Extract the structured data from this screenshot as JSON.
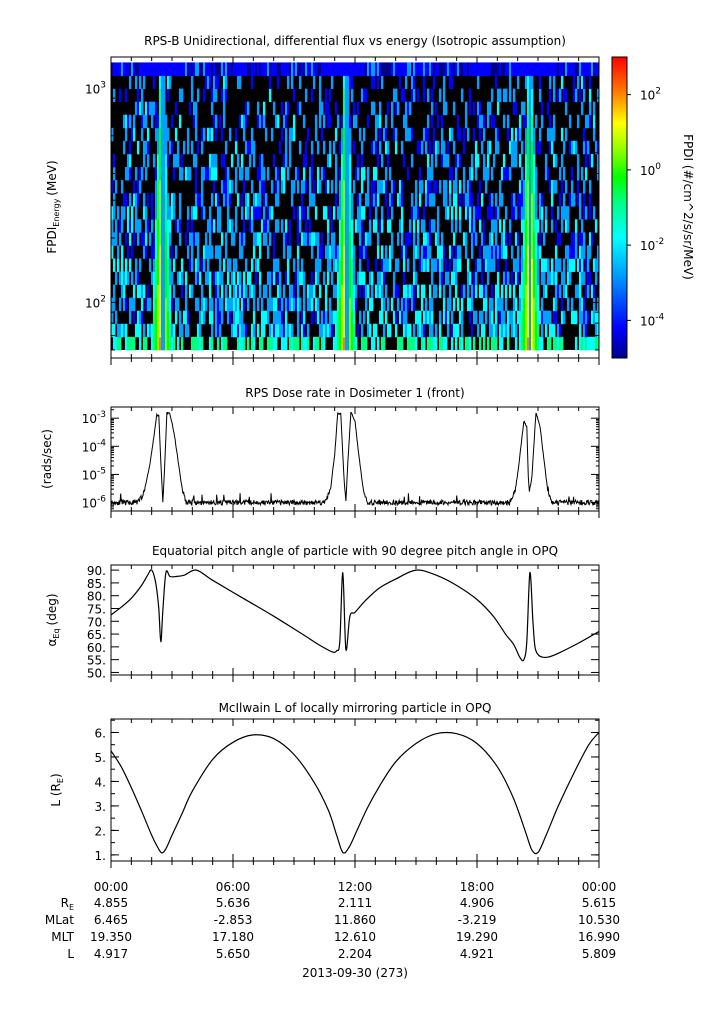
{
  "chart_data": [
    {
      "type": "heatmap",
      "title": "RPS-B  Unidirectional, differential flux vs energy (Isotropic assumption)",
      "ylabel_main": "FPDI",
      "ylabel_sub": "Energy",
      "ylabel_unit": "(MeV)",
      "yscale": "log",
      "ylim": [
        55,
        1400
      ],
      "yticks": [
        {
          "value": 100,
          "base": "10",
          "exp": "2"
        },
        {
          "value": 1000,
          "base": "10",
          "exp": "3"
        }
      ],
      "xlim_hours": [
        0,
        24
      ],
      "colorbar": {
        "label": "FPDI (#/cm^2/s/sr/MeV)",
        "scale": "log",
        "range_log10": [
          -5,
          3
        ],
        "ticks": [
          {
            "value_log10": 2,
            "base": "10",
            "exp": "2"
          },
          {
            "value_log10": 0,
            "base": "10",
            "exp": "0"
          },
          {
            "value_log10": -2,
            "base": "10",
            "exp": "-2"
          },
          {
            "value_log10": -4,
            "base": "10",
            "exp": "-4"
          }
        ],
        "colors": [
          "#00008b",
          "#0000ff",
          "#00a0ff",
          "#00ffff",
          "#00ff80",
          "#00ff00",
          "#80ff00",
          "#ffff00",
          "#ff8000",
          "#ff0000"
        ]
      },
      "belt_passes_hours": [
        {
          "start": 1.5,
          "peak_in": 2.2,
          "gap": 2.55,
          "peak_out": 2.9,
          "end": 3.5
        },
        {
          "start": 10.6,
          "peak_in": 11.25,
          "gap": 11.6,
          "peak_out": 11.9,
          "end": 12.5
        },
        {
          "start": 19.7,
          "peak_in": 20.3,
          "gap": 20.6,
          "peak_out": 20.9,
          "end": 21.5
        }
      ]
    },
    {
      "type": "line",
      "title": "RPS  Dose rate in Dosimeter 1 (front)",
      "ylabel": "(rads/sec)",
      "yscale": "log",
      "ylim": [
        5e-07,
        0.0025
      ],
      "yticks": [
        {
          "value": 1e-06,
          "base": "10",
          "exp": "-6"
        },
        {
          "value": 1e-05,
          "base": "10",
          "exp": "-5"
        },
        {
          "value": 0.0001,
          "base": "10",
          "exp": "-4"
        },
        {
          "value": 0.001,
          "base": "10",
          "exp": "-3"
        }
      ],
      "series": [
        {
          "x_hours": [
            0,
            1.3,
            1.6,
            1.9,
            2.1,
            2.25,
            2.35,
            2.45,
            2.55,
            2.65,
            2.75,
            2.9,
            3.1,
            3.3,
            3.5,
            3.7,
            10.5,
            10.8,
            11.0,
            11.15,
            11.3,
            11.45,
            11.55,
            11.65,
            11.8,
            12.0,
            12.2,
            12.4,
            12.6,
            19.6,
            19.9,
            20.1,
            20.3,
            20.45,
            20.55,
            20.7,
            20.9,
            21.1,
            21.3,
            21.5,
            21.7,
            24
          ],
          "y": [
            1e-06,
            1e-06,
            2e-06,
            2e-05,
            0.0002,
            0.0013,
            0.0012,
            3e-05,
            1e-06,
            3e-05,
            0.0016,
            0.0014,
            0.0003,
            3e-05,
            3e-06,
            1e-06,
            1e-06,
            3e-06,
            5e-05,
            0.0015,
            0.0014,
            1e-05,
            1e-06,
            3e-05,
            0.0016,
            0.0008,
            4e-05,
            3e-06,
            1e-06,
            1e-06,
            3e-06,
            4e-05,
            0.0008,
            0.0005,
            2e-06,
            8e-06,
            0.0016,
            0.0005,
            3e-05,
            2e-06,
            1e-06,
            1e-06
          ]
        }
      ]
    },
    {
      "type": "line",
      "title": "Equatorial pitch angle of particle with 90 degree pitch angle in OPQ",
      "ylabel_main": "α",
      "ylabel_sub": "Eq",
      "ylabel_unit": "(deg)",
      "ylim": [
        49,
        92
      ],
      "yticks": [
        50,
        55,
        60,
        65,
        70,
        75,
        80,
        85,
        90
      ],
      "ytick_labels": [
        "50.",
        "55.",
        "60.",
        "65.",
        "70.",
        "75.",
        "80.",
        "85.",
        "90."
      ],
      "series": [
        {
          "x_hours": [
            0,
            0.5,
            1.0,
            1.5,
            1.8,
            2.0,
            2.2,
            2.35,
            2.45,
            2.55,
            2.7,
            2.9,
            3.2,
            3.6,
            4.2,
            5.0,
            6.5,
            8.0,
            9.5,
            10.4,
            10.9,
            11.1,
            11.25,
            11.4,
            11.55,
            11.75,
            12.0,
            12.5,
            13.2,
            14.0,
            15.0,
            16.0,
            17.0,
            18.0,
            18.8,
            19.4,
            19.8,
            20.1,
            20.3,
            20.45,
            20.6,
            20.75,
            20.85,
            21.0,
            21.2,
            21.5,
            22.0,
            23.0,
            24
          ],
          "y": [
            72.5,
            75.5,
            79,
            84,
            88,
            90,
            85,
            75,
            62,
            74,
            89,
            87.5,
            87.5,
            88,
            90,
            86,
            79,
            72,
            64.5,
            60,
            58,
            58.5,
            62,
            89,
            59,
            72,
            73.5,
            78,
            83,
            86.5,
            90,
            88,
            84,
            78.5,
            72,
            65,
            61,
            56,
            55,
            62,
            89,
            70,
            60,
            57,
            56,
            56,
            57.5,
            61.5,
            66
          ]
        }
      ]
    },
    {
      "type": "line",
      "title": "McIlwain L of locally mirroring particle in OPQ",
      "ylabel_main": "L (R",
      "ylabel_sub": "E",
      "ylabel_close": ")",
      "ylim": [
        0.75,
        6.55
      ],
      "yticks": [
        1,
        2,
        3,
        4,
        5,
        6
      ],
      "ytick_labels": [
        "1.",
        "2.",
        "3.",
        "4.",
        "5.",
        "6."
      ],
      "series": [
        {
          "x_hours": [
            0,
            0.5,
            1.0,
            1.5,
            2.0,
            2.3,
            2.5,
            2.7,
            3.0,
            3.5,
            4.0,
            5.0,
            6.0,
            7.0,
            8.0,
            9.0,
            10.0,
            10.7,
            11.1,
            11.4,
            11.7,
            12.1,
            12.6,
            13.2,
            14.0,
            15.0,
            16.0,
            17.0,
            18.0,
            19.0,
            19.8,
            20.4,
            20.7,
            21.0,
            21.4,
            22.0,
            22.8,
            23.5,
            24
          ],
          "y": [
            5.25,
            4.6,
            3.75,
            2.8,
            1.8,
            1.3,
            1.08,
            1.25,
            1.8,
            2.7,
            3.6,
            4.9,
            5.6,
            5.9,
            5.75,
            5.1,
            3.95,
            2.8,
            1.8,
            1.1,
            1.3,
            2.0,
            2.9,
            3.8,
            4.8,
            5.55,
            5.95,
            5.95,
            5.55,
            4.6,
            3.3,
            1.9,
            1.2,
            1.1,
            1.8,
            3.0,
            4.4,
            5.5,
            6.0
          ]
        }
      ]
    }
  ],
  "x_axis": {
    "tick_labels": [
      "00:00",
      "06:00",
      "12:00",
      "18:00",
      "00:00"
    ],
    "rows": [
      {
        "label": "R",
        "label_sub": "E",
        "values": [
          "4.855",
          "5.636",
          "2.111",
          "4.906",
          "5.615"
        ]
      },
      {
        "label": "MLat",
        "label_sub": "",
        "values": [
          "6.465",
          "-2.853",
          "11.860",
          "-3.219",
          "10.530"
        ]
      },
      {
        "label": "MLT",
        "label_sub": "",
        "values": [
          "19.350",
          "17.180",
          "12.610",
          "19.290",
          "16.990"
        ]
      },
      {
        "label": "L",
        "label_sub": "",
        "values": [
          "4.917",
          "5.650",
          "2.204",
          "4.921",
          "5.809"
        ]
      }
    ],
    "date_label": "2013-09-30 (273)"
  }
}
